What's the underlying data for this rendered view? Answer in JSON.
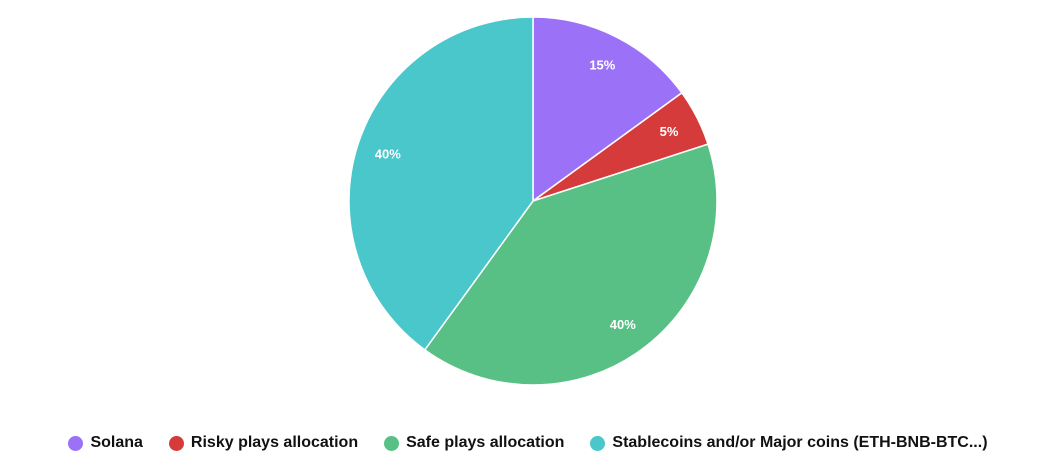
{
  "chart_data": {
    "type": "pie",
    "start_angle_deg": 0,
    "direction": "clockwise",
    "legend_position": "bottom",
    "slices": [
      {
        "label": "Solana",
        "value": 15,
        "display": "15%",
        "color": "#9b72f7"
      },
      {
        "label": "Risky plays allocation",
        "value": 5,
        "display": "5%",
        "color": "#d63b3b"
      },
      {
        "label": "Safe plays allocation",
        "value": 40,
        "display": "40%",
        "color": "#58c084"
      },
      {
        "label": "Stablecoins and/or Major coins (ETH-BNB-BTC...)",
        "value": 40,
        "display": "40%",
        "color": "#49c7ca"
      }
    ]
  }
}
